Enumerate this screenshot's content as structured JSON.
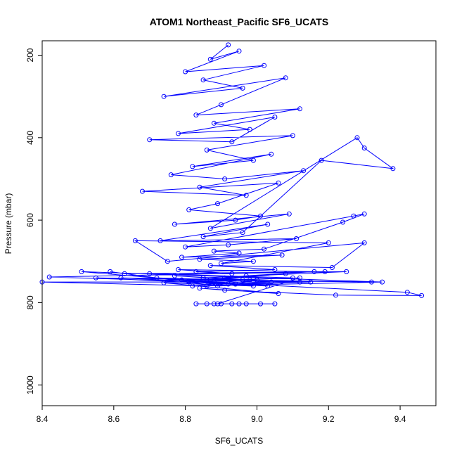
{
  "chart_data": {
    "type": "line",
    "title": "ATOM1 Northeast_Pacific SF6_UCATS",
    "xlabel": "SF6_UCATS",
    "ylabel": "Pressure (mbar)",
    "xlim": [
      8.4,
      9.5
    ],
    "ylim": [
      1050,
      165
    ],
    "y_reversed": true,
    "x_ticks": [
      "8.4",
      "8.6",
      "8.8",
      "9.0",
      "9.2",
      "9.4"
    ],
    "y_ticks": [
      "200",
      "400",
      "600",
      "800",
      "1000"
    ],
    "grid": false,
    "legend": "none",
    "series": [
      {
        "color": "#0000ff",
        "marker": "open-circle",
        "x": [
          8.92,
          8.87,
          8.95,
          8.8,
          9.02,
          8.85,
          8.96,
          8.74,
          9.08,
          8.9,
          8.83,
          9.12,
          8.88,
          8.98,
          8.78,
          9.05,
          8.93,
          8.7,
          9.1,
          8.86,
          8.99,
          8.82,
          9.04,
          8.76,
          8.91,
          9.13,
          8.84,
          8.97,
          8.68,
          9.06,
          8.89,
          8.81,
          9.01,
          8.94,
          8.77,
          9.09,
          8.87,
          9.28,
          9.3,
          9.38,
          9.18,
          8.96,
          8.85,
          9.03,
          8.73,
          9.11,
          8.92,
          8.8,
          9.27,
          9.3,
          9.24,
          9.02,
          8.88,
          8.95,
          8.79,
          9.07,
          8.84,
          8.99,
          8.9,
          9.2,
          8.66,
          8.75,
          9.3,
          9.21,
          8.87,
          9.05,
          8.83,
          8.93,
          8.78,
          9.16,
          8.97,
          8.91,
          8.86,
          9.08,
          8.81,
          9.0,
          8.94,
          8.72,
          9.12,
          8.89,
          8.59,
          8.63,
          9.25,
          8.85,
          8.98,
          8.77,
          9.04,
          8.92,
          8.51,
          9.35,
          8.82,
          8.96,
          9.1,
          8.7,
          9.19,
          8.42,
          8.88,
          9.03,
          8.55,
          9.32,
          8.79,
          8.94,
          9.15,
          8.4,
          8.86,
          9.0,
          8.62,
          9.42,
          9.46,
          9.22,
          8.91,
          8.84,
          9.06,
          8.74,
          8.99,
          8.81,
          9.12,
          8.89,
          8.95,
          8.83,
          8.9,
          8.97,
          9.05,
          8.86,
          8.93,
          9.01,
          8.88
        ],
        "y": [
          175,
          210,
          190,
          240,
          225,
          260,
          280,
          300,
          255,
          320,
          345,
          330,
          365,
          380,
          390,
          350,
          410,
          405,
          395,
          430,
          455,
          470,
          440,
          490,
          500,
          480,
          520,
          540,
          530,
          510,
          560,
          575,
          590,
          600,
          610,
          585,
          620,
          400,
          425,
          475,
          455,
          630,
          640,
          610,
          650,
          645,
          660,
          665,
          590,
          585,
          605,
          670,
          675,
          680,
          690,
          685,
          695,
          700,
          705,
          655,
          650,
          700,
          655,
          715,
          710,
          720,
          725,
          730,
          720,
          725,
          735,
          740,
          745,
          730,
          750,
          745,
          755,
          740,
          750,
          760,
          725,
          730,
          725,
          740,
          745,
          735,
          750,
          755,
          725,
          750,
          760,
          745,
          740,
          730,
          725,
          738,
          750,
          760,
          740,
          750,
          745,
          755,
          750,
          750,
          760,
          745,
          740,
          775,
          783,
          782,
          770,
          765,
          778,
          752,
          760,
          748,
          740,
          803,
          803,
          803,
          803,
          803,
          803,
          803,
          803,
          803,
          803
        ]
      }
    ]
  }
}
